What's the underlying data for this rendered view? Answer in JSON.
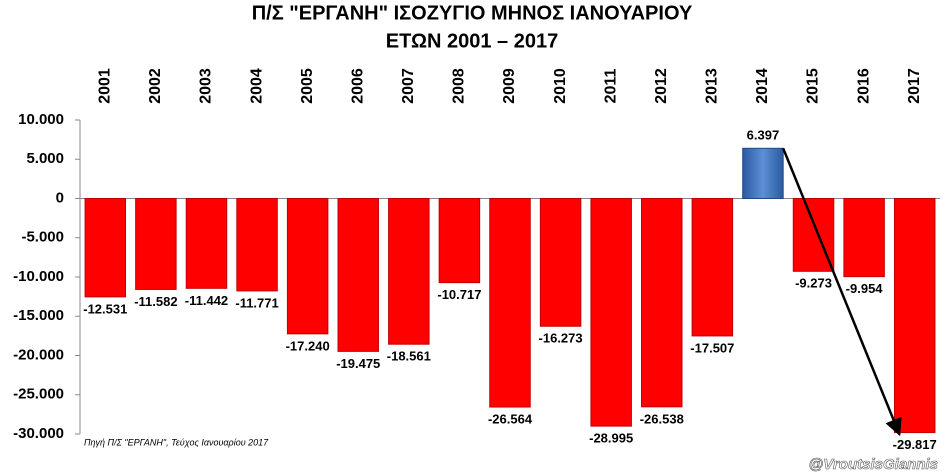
{
  "chart_data": {
    "type": "bar",
    "title": "Π/Σ \"ΕΡΓΑΝΗ\" ΙΣΟΖΥΓΙΟ ΜΗΝΟΣ ΙΑΝΟΥΑΡΙΟΥ",
    "subtitle": "ΕΤΩΝ 2001 – 2017",
    "categories": [
      "2001",
      "2002",
      "2003",
      "2004",
      "2005",
      "2006",
      "2007",
      "2008",
      "2009",
      "2010",
      "2011",
      "2012",
      "2013",
      "2014",
      "2015",
      "2016",
      "2017"
    ],
    "values": [
      -12531,
      -11582,
      -11442,
      -11771,
      -17240,
      -19475,
      -18561,
      -10717,
      -26564,
      -16273,
      -28995,
      -26538,
      -17507,
      6397,
      -9273,
      -9954,
      -29817
    ],
    "value_labels": [
      "-12.531",
      "-11.582",
      "-11.442",
      "-11.771",
      "-17.240",
      "-19.475",
      "-18.561",
      "-10.717",
      "-26.564",
      "-16.273",
      "-28.995",
      "-26.538",
      "-17.507",
      "6.397",
      "-9.273",
      "-9.954",
      "-29.817"
    ],
    "colors": [
      "#ff0000",
      "#ff0000",
      "#ff0000",
      "#ff0000",
      "#ff0000",
      "#ff0000",
      "#ff0000",
      "#ff0000",
      "#ff0000",
      "#ff0000",
      "#ff0000",
      "#ff0000",
      "#ff0000",
      "#3a6fc0",
      "#ff0000",
      "#ff0000",
      "#ff0000"
    ],
    "ylim": [
      -30000,
      10000
    ],
    "yticks": [
      {
        "value": 10000,
        "label": "10.000"
      },
      {
        "value": 5000,
        "label": "5.000"
      },
      0,
      {
        "value": -5000,
        "label": "-5.000"
      },
      {
        "value": -10000,
        "label": "-10.000"
      },
      {
        "value": -15000,
        "label": "-15.000"
      },
      {
        "value": -20000,
        "label": "-20.000"
      },
      {
        "value": -25000,
        "label": "-25.000"
      },
      {
        "value": -30000,
        "label": "-30.000"
      }
    ],
    "grid": false,
    "source": "Πηγή Π/Σ \"ΕΡΓΑΝΗ\", Τεύχος Ιανουαρίου 2017",
    "watermark": "@VroutsisGiannis"
  }
}
